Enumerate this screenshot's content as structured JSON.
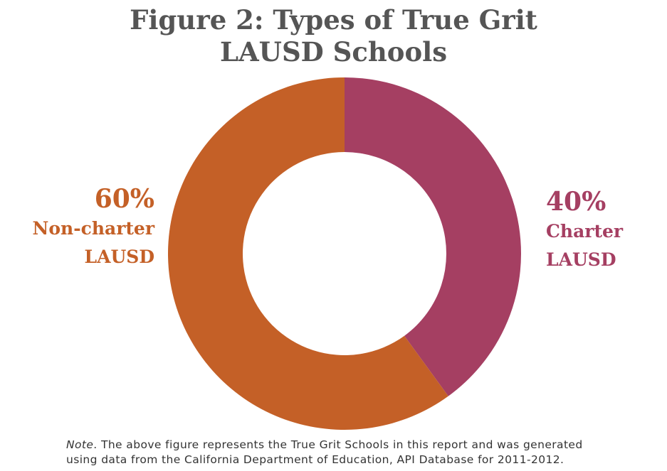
{
  "chart_data": {
    "type": "pie",
    "donut": true,
    "title_lines": [
      "Figure 2: Types of True Grit",
      "LAUSD Schools"
    ],
    "slices": [
      {
        "value": 40,
        "pct_label": "40%",
        "name_lines": [
          "Charter",
          "LAUSD"
        ],
        "color": "#a53f62"
      },
      {
        "value": 60,
        "pct_label": "60%",
        "name_lines": [
          "Non-charter",
          "LAUSD"
        ],
        "color": "#c46027"
      }
    ]
  },
  "note": {
    "tag": "Note",
    "text_line1": ". The above figure represents the True Grit Schools in this report and was generated",
    "text_line2": "using data from the California Department of Education, API Database for 2011-2012."
  }
}
